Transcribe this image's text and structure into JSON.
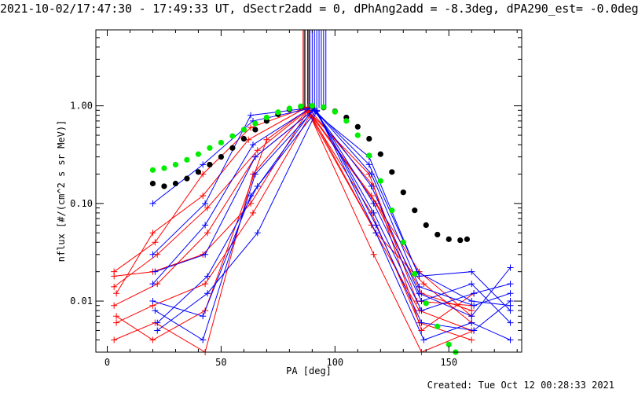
{
  "title": "2021-10-02/17:47:30 - 17:49:33 UT, dSectr2add = 0, dPhAng2add = -8.3deg, dPA290_est= -0.0deg",
  "footer": "Created: Tue Oct 12 00:28:33 2021",
  "chart_data": {
    "type": "line",
    "xlabel": "PA [deg]",
    "ylabel": "nflux [#/(cm^2 s sr MeV)]",
    "xlim": [
      -5,
      182
    ],
    "ylim": [
      0.003,
      6
    ],
    "yscale": "log",
    "xticks": [
      0,
      50,
      100,
      150
    ],
    "yticks": [
      {
        "value": 0.01,
        "label": "0.01"
      },
      {
        "value": 0.1,
        "label": "0.10"
      },
      {
        "value": 1,
        "label": "1.00"
      }
    ],
    "colors": {
      "red": "#ff0000",
      "blue": "#0000ff",
      "black": "#000000",
      "green": "#00ee00"
    },
    "series": [
      {
        "color": "#ff0000",
        "marker": "plus",
        "x": [
          3,
          20,
          42,
          63,
          88,
          116,
          137,
          160
        ],
        "y": [
          0.018,
          0.02,
          0.03,
          0.1,
          0.88,
          0.08,
          0.006,
          0.004
        ]
      },
      {
        "color": "#ff0000",
        "marker": "plus",
        "x": [
          3,
          21,
          43,
          64,
          88,
          117,
          138,
          161
        ],
        "y": [
          0.004,
          0.006,
          0.003,
          0.2,
          0.9,
          0.03,
          0.003,
          0.005
        ]
      },
      {
        "color": "#ff0000",
        "marker": "plus",
        "x": [
          4,
          20,
          42,
          62,
          87,
          115,
          136,
          160
        ],
        "y": [
          0.012,
          0.05,
          0.12,
          0.45,
          0.95,
          0.2,
          0.01,
          0.009
        ]
      },
      {
        "color": "#ff0000",
        "marker": "plus",
        "x": [
          3,
          22,
          44,
          65,
          89,
          118,
          139,
          160
        ],
        "y": [
          0.009,
          0.015,
          0.05,
          0.3,
          0.85,
          0.05,
          0.015,
          0.006
        ]
      },
      {
        "color": "#ff0000",
        "marker": "plus",
        "x": [
          4,
          20,
          43,
          70,
          88,
          116,
          137,
          160
        ],
        "y": [
          0.007,
          0.004,
          0.008,
          0.45,
          0.92,
          0.12,
          0.02,
          0.007
        ]
      },
      {
        "color": "#ff0000",
        "marker": "plus",
        "x": [
          3,
          21,
          42,
          63,
          88,
          117,
          138,
          161
        ],
        "y": [
          0.02,
          0.04,
          0.2,
          0.6,
          0.97,
          0.15,
          0.005,
          0.012
        ]
      },
      {
        "color": "#ff0000",
        "marker": "plus",
        "x": [
          4,
          20,
          43,
          64,
          89,
          116,
          137,
          160
        ],
        "y": [
          0.006,
          0.009,
          0.015,
          0.08,
          0.8,
          0.06,
          0.008,
          0.005
        ]
      },
      {
        "color": "#ff0000",
        "marker": "plus",
        "x": [
          3,
          22,
          44,
          66,
          88,
          118,
          138,
          160
        ],
        "y": [
          0.014,
          0.03,
          0.09,
          0.35,
          0.9,
          0.1,
          0.012,
          0.008
        ]
      },
      {
        "color": "#0000ff",
        "marker": "plus",
        "x": [
          20,
          42,
          64,
          90,
          116,
          137,
          160,
          177
        ],
        "y": [
          0.1,
          0.25,
          0.7,
          0.95,
          0.15,
          0.012,
          0.007,
          0.022
        ]
      },
      {
        "color": "#0000ff",
        "marker": "plus",
        "x": [
          21,
          43,
          65,
          91,
          117,
          138,
          161,
          177
        ],
        "y": [
          0.02,
          0.03,
          0.3,
          0.93,
          0.08,
          0.008,
          0.012,
          0.015
        ]
      },
      {
        "color": "#0000ff",
        "marker": "plus",
        "x": [
          20,
          42,
          63,
          90,
          115,
          136,
          160,
          177
        ],
        "y": [
          0.01,
          0.007,
          0.12,
          0.9,
          0.3,
          0.02,
          0.01,
          0.009
        ]
      },
      {
        "color": "#0000ff",
        "marker": "plus",
        "x": [
          22,
          44,
          66,
          92,
          118,
          139,
          160,
          177
        ],
        "y": [
          0.005,
          0.012,
          0.05,
          0.88,
          0.05,
          0.004,
          0.006,
          0.004
        ]
      },
      {
        "color": "#0000ff",
        "marker": "plus",
        "x": [
          20,
          43,
          64,
          90,
          116,
          137,
          161,
          177
        ],
        "y": [
          0.015,
          0.06,
          0.4,
          0.97,
          0.2,
          0.014,
          0.009,
          0.012
        ]
      },
      {
        "color": "#0000ff",
        "marker": "plus",
        "x": [
          21,
          42,
          65,
          91,
          117,
          138,
          160,
          177
        ],
        "y": [
          0.008,
          0.004,
          0.2,
          0.92,
          0.1,
          0.01,
          0.015,
          0.006
        ]
      },
      {
        "color": "#0000ff",
        "marker": "plus",
        "x": [
          20,
          43,
          63,
          90,
          115,
          137,
          160,
          177
        ],
        "y": [
          0.03,
          0.1,
          0.8,
          0.96,
          0.25,
          0.018,
          0.02,
          0.008
        ]
      },
      {
        "color": "#0000ff",
        "marker": "plus",
        "x": [
          22,
          44,
          66,
          92,
          118,
          138,
          161,
          177
        ],
        "y": [
          0.006,
          0.018,
          0.15,
          0.9,
          0.06,
          0.006,
          0.005,
          0.01
        ]
      },
      {
        "color": "#000000",
        "marker": "dot",
        "x": [
          20,
          25,
          30,
          35,
          40,
          45,
          50,
          55,
          60,
          65,
          70,
          75,
          80,
          85,
          90,
          95,
          100,
          105,
          110,
          115,
          120,
          125,
          130,
          135,
          140,
          145,
          150,
          155,
          158
        ],
        "y": [
          0.16,
          0.15,
          0.16,
          0.18,
          0.21,
          0.25,
          0.3,
          0.37,
          0.46,
          0.57,
          0.7,
          0.82,
          0.92,
          0.98,
          0.99,
          0.96,
          0.88,
          0.76,
          0.61,
          0.46,
          0.32,
          0.21,
          0.13,
          0.085,
          0.06,
          0.048,
          0.043,
          0.042,
          0.043
        ]
      },
      {
        "color": "#00ee00",
        "marker": "dot",
        "x": [
          20,
          25,
          30,
          35,
          40,
          45,
          50,
          55,
          60,
          65,
          70,
          75,
          80,
          85,
          90,
          95,
          100,
          105,
          110,
          115,
          120,
          125,
          130,
          135,
          140,
          145,
          150,
          153
        ],
        "y": [
          0.22,
          0.23,
          0.25,
          0.28,
          0.32,
          0.37,
          0.42,
          0.49,
          0.57,
          0.66,
          0.76,
          0.86,
          0.94,
          0.99,
          1.0,
          0.97,
          0.87,
          0.7,
          0.5,
          0.31,
          0.17,
          0.085,
          0.04,
          0.019,
          0.0095,
          0.0055,
          0.0036,
          0.003
        ]
      }
    ],
    "vlines": [
      {
        "color": "#ff0000",
        "x": [
          86,
          87,
          88,
          89
        ]
      },
      {
        "color": "#000000",
        "x": [
          86.5,
          88.5
        ]
      },
      {
        "color": "#0000ff",
        "x": [
          88,
          89,
          90,
          91,
          92,
          93,
          94,
          95,
          96
        ]
      }
    ]
  }
}
